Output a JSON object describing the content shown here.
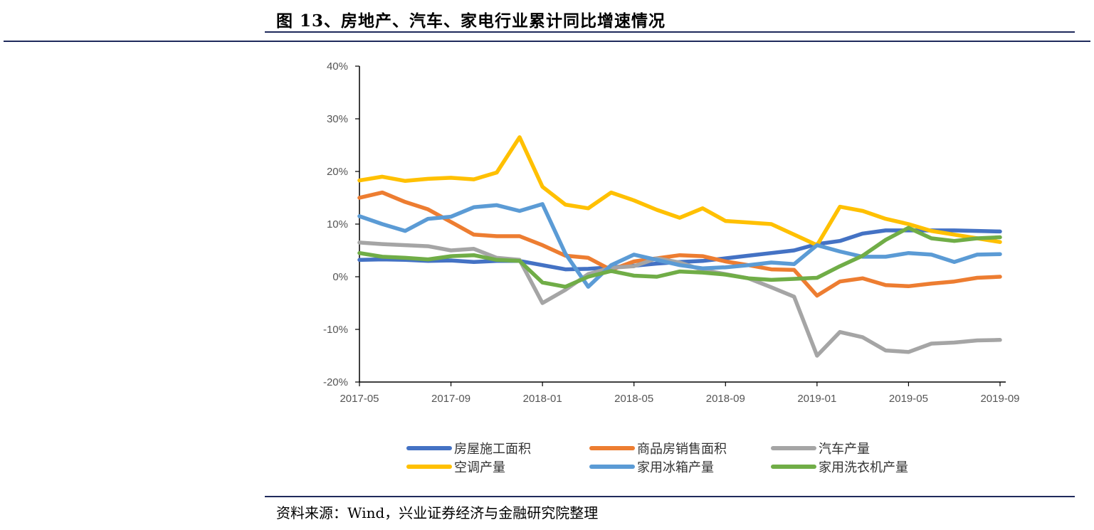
{
  "figure": {
    "title": "图 13、房地产、汽车、家电行业累计同比增速情况",
    "source": "资料来源：Wind，兴业证券经济与金融研究院整理"
  },
  "chart_data": {
    "type": "line",
    "y_ticks": [
      "40%",
      "30%",
      "20%",
      "10%",
      "0%",
      "-10%",
      "-20%"
    ],
    "ylim": [
      -20,
      40
    ],
    "x_ticks": [
      "2017-05",
      "2017-09",
      "2018-01",
      "2018-05",
      "2018-09",
      "2019-01",
      "2019-05",
      "2019-09"
    ],
    "x": [
      "2017-05",
      "2017-06",
      "2017-07",
      "2017-08",
      "2017-09",
      "2017-10",
      "2017-11",
      "2017-12",
      "2018-01",
      "2018-02",
      "2018-03",
      "2018-04",
      "2018-05",
      "2018-06",
      "2018-07",
      "2018-08",
      "2018-09",
      "2018-10",
      "2018-11",
      "2018-12",
      "2019-01",
      "2019-02",
      "2019-03",
      "2019-04",
      "2019-05",
      "2019-06",
      "2019-07",
      "2019-08",
      "2019-09"
    ],
    "legend_position": "bottom",
    "series": [
      {
        "name": "房屋施工面积",
        "color": "#4472c4",
        "values": [
          3.2,
          3.3,
          3.2,
          3.0,
          3.1,
          2.8,
          3.0,
          3.0,
          2.2,
          1.4,
          1.5,
          1.8,
          2.1,
          2.5,
          2.8,
          3.0,
          3.5,
          4.0,
          4.5,
          5.0,
          6.2,
          6.8,
          8.2,
          8.8,
          8.8,
          8.8,
          8.8,
          8.7,
          8.6
        ]
      },
      {
        "name": "商品房销售面积",
        "color": "#ed7d31",
        "values": [
          15.0,
          16.0,
          14.2,
          12.8,
          10.4,
          8.0,
          7.7,
          7.7,
          6.0,
          4.0,
          3.6,
          1.3,
          2.9,
          3.5,
          4.1,
          3.9,
          2.9,
          2.2,
          1.4,
          1.3,
          -3.6,
          -0.9,
          -0.3,
          -1.6,
          -1.8,
          -1.3,
          -0.9,
          -0.2,
          0.0
        ]
      },
      {
        "name": "汽车产量",
        "color": "#a5a5a5",
        "values": [
          6.5,
          6.2,
          6.0,
          5.8,
          5.0,
          5.3,
          3.6,
          3.2,
          -5.0,
          -2.5,
          0.5,
          1.7,
          2.0,
          3.5,
          2.7,
          1.3,
          0.5,
          -0.3,
          -2.0,
          -3.8,
          -15.0,
          -10.5,
          -11.5,
          -14.0,
          -14.3,
          -12.7,
          -12.5,
          -12.1,
          -12.0
        ]
      },
      {
        "name": "空调产量",
        "color": "#ffc000",
        "values": [
          18.3,
          19.0,
          18.2,
          18.6,
          18.8,
          18.5,
          19.8,
          26.5,
          17.1,
          13.7,
          13.0,
          16.0,
          14.5,
          12.7,
          11.2,
          13.0,
          10.6,
          10.3,
          10.0,
          8.0,
          6.0,
          13.3,
          12.5,
          11.0,
          10.0,
          8.7,
          8.0,
          7.3,
          6.6
        ]
      },
      {
        "name": "家用冰箱产量",
        "color": "#5b9bd5",
        "values": [
          11.5,
          10.0,
          8.7,
          11.0,
          11.4,
          13.2,
          13.6,
          12.5,
          13.8,
          4.4,
          -1.9,
          2.2,
          4.2,
          3.2,
          2.2,
          1.6,
          1.8,
          2.2,
          2.7,
          2.4,
          6.0,
          4.8,
          3.8,
          3.8,
          4.5,
          4.2,
          2.8,
          4.2,
          4.3
        ]
      },
      {
        "name": "家用洗衣机产量",
        "color": "#70ad47",
        "values": [
          4.5,
          3.8,
          3.6,
          3.3,
          3.9,
          4.1,
          3.2,
          3.0,
          -1.1,
          -1.9,
          0.0,
          1.1,
          0.2,
          0.0,
          1.0,
          0.8,
          0.4,
          -0.3,
          -0.6,
          -0.4,
          -0.2,
          2.0,
          4.0,
          7.0,
          9.3,
          7.3,
          6.8,
          7.3,
          7.5
        ]
      }
    ]
  }
}
